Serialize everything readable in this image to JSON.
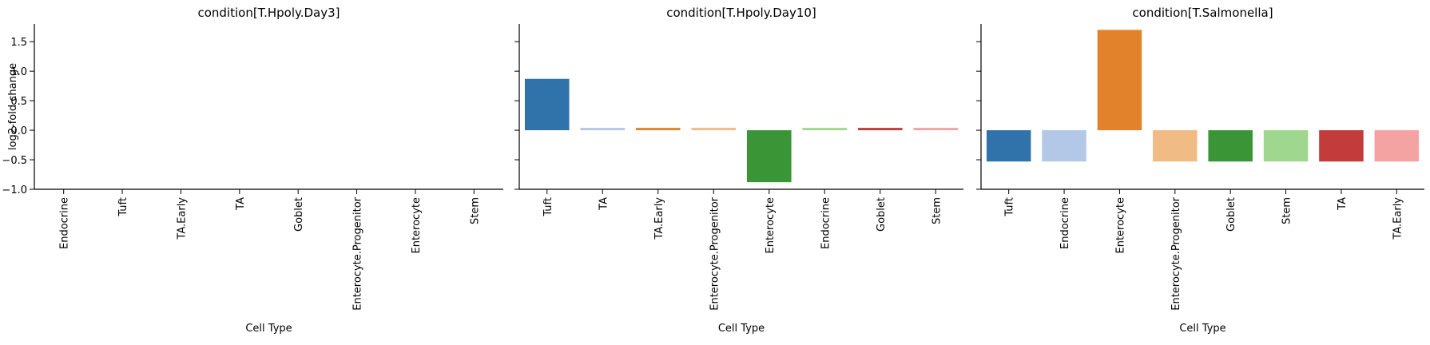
{
  "chart_data": {
    "type": "bar",
    "ylabel": "log2-fold change",
    "ylim": [
      -1.0,
      1.8
    ],
    "yticks": [
      -1.0,
      -0.5,
      0.0,
      0.5,
      1.0,
      1.5
    ],
    "ytick_labels": [
      "−1.0",
      "−0.5",
      "0.0",
      "0.5",
      "1.0",
      "1.5"
    ],
    "grid": false,
    "legend": "none",
    "palette": {
      "Tuft": "#2f73aa",
      "TA": "#b2c8e6",
      "TA.Early": "#f4a3a2",
      "Enterocyte.Progenitor": "#f1bb85",
      "Enterocyte": "#e2822b",
      "Endocrine": "#a0d78f",
      "Goblet": "#399536",
      "Stem": "#a0d78f",
      "Red": "#c33b3a",
      "LightRed": "#f4a3a2",
      "Orange": "#e2822b"
    },
    "panels": [
      {
        "title": "condition[T.Hpoly.Day3]",
        "xlabel": "Cell Type",
        "categories": [
          "Endocrine",
          "Tuft",
          "TA.Early",
          "TA",
          "Goblet",
          "Enterocyte.Progenitor",
          "Enterocyte",
          "Stem"
        ],
        "values": [
          null,
          null,
          null,
          null,
          null,
          null,
          null,
          null
        ],
        "colors": [
          "#2f73aa",
          "#b2c8e6",
          "#e2822b",
          "#f1bb85",
          "#399536",
          "#a0d78f",
          "#c33b3a",
          "#f4a3a2"
        ]
      },
      {
        "title": "condition[T.Hpoly.Day10]",
        "xlabel": "Cell Type",
        "categories": [
          "Tuft",
          "TA",
          "TA.Early",
          "Enterocyte.Progenitor",
          "Enterocyte",
          "Endocrine",
          "Goblet",
          "Stem"
        ],
        "values": [
          0.87,
          0.04,
          0.04,
          0.04,
          -0.88,
          0.04,
          0.04,
          0.04
        ],
        "colors": [
          "#2f73aa",
          "#b2c8e6",
          "#e2822b",
          "#f1bb85",
          "#399536",
          "#a0d78f",
          "#c33b3a",
          "#f4a3a2"
        ]
      },
      {
        "title": "condition[T.Salmonella]",
        "xlabel": "Cell Type",
        "categories": [
          "Tuft",
          "Endocrine",
          "Enterocyte",
          "Enterocyte.Progenitor",
          "Goblet",
          "Stem",
          "TA",
          "TA.Early"
        ],
        "values": [
          -0.53,
          -0.53,
          1.7,
          -0.53,
          -0.53,
          -0.53,
          -0.53,
          -0.53
        ],
        "colors": [
          "#2f73aa",
          "#b2c8e6",
          "#e2822b",
          "#f1bb85",
          "#399536",
          "#a0d78f",
          "#c33b3a",
          "#f4a3a2"
        ]
      }
    ]
  }
}
